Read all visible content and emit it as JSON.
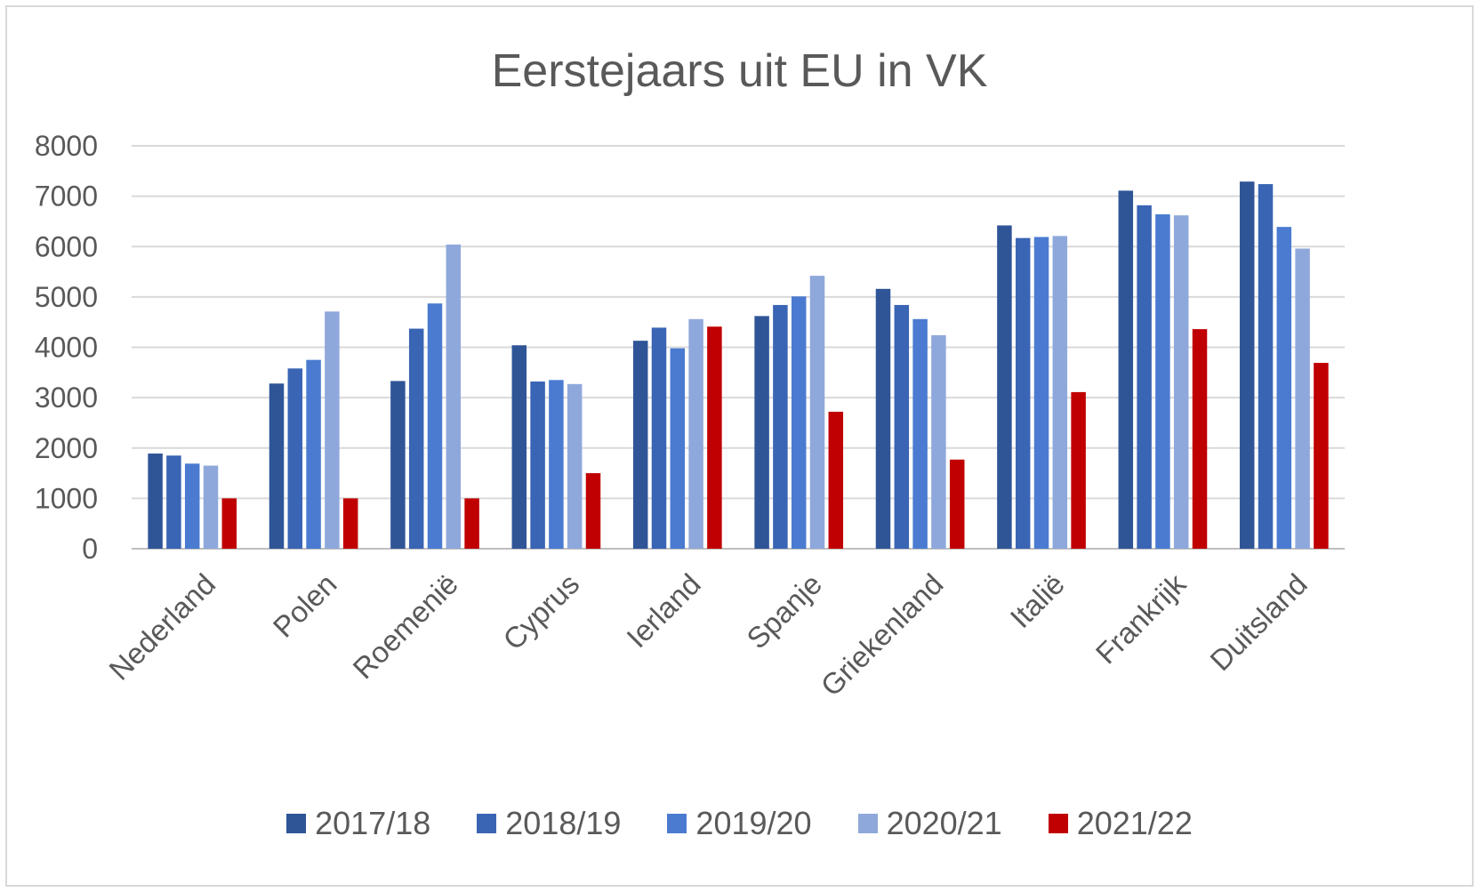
{
  "chart_data": {
    "type": "bar",
    "title": "Eerstejaars uit EU in VK",
    "xlabel": "",
    "ylabel": "",
    "ylim": [
      0,
      8000
    ],
    "yticks": [
      0,
      1000,
      2000,
      3000,
      4000,
      5000,
      6000,
      7000,
      8000
    ],
    "grid": true,
    "legend_position": "bottom",
    "categories": [
      "Nederland",
      "Polen",
      "Roemenië",
      "Cyprus",
      "Ierland",
      "Spanje",
      "Griekenland",
      "Italië",
      "Frankrijk",
      "Duitsland"
    ],
    "series": [
      {
        "name": "2017/18",
        "color": "#2f5597",
        "values": [
          1890,
          3280,
          3330,
          4040,
          4130,
          4620,
          5160,
          6420,
          7110,
          7290
        ]
      },
      {
        "name": "2018/19",
        "color": "#3a64b4",
        "values": [
          1850,
          3580,
          4370,
          3320,
          4390,
          4840,
          4840,
          6170,
          6820,
          7240
        ]
      },
      {
        "name": "2019/20",
        "color": "#4a7bd1",
        "values": [
          1690,
          3750,
          4870,
          3350,
          3980,
          5010,
          4560,
          6190,
          6640,
          6390
        ]
      },
      {
        "name": "2020/21",
        "color": "#8fa8db",
        "values": [
          1650,
          4710,
          6040,
          3270,
          4560,
          5420,
          4240,
          6210,
          6620,
          5960
        ]
      },
      {
        "name": "2021/22",
        "color": "#c00000",
        "values": [
          1000,
          1000,
          1000,
          1500,
          4410,
          2720,
          1770,
          3110,
          4360,
          3690
        ]
      }
    ]
  }
}
